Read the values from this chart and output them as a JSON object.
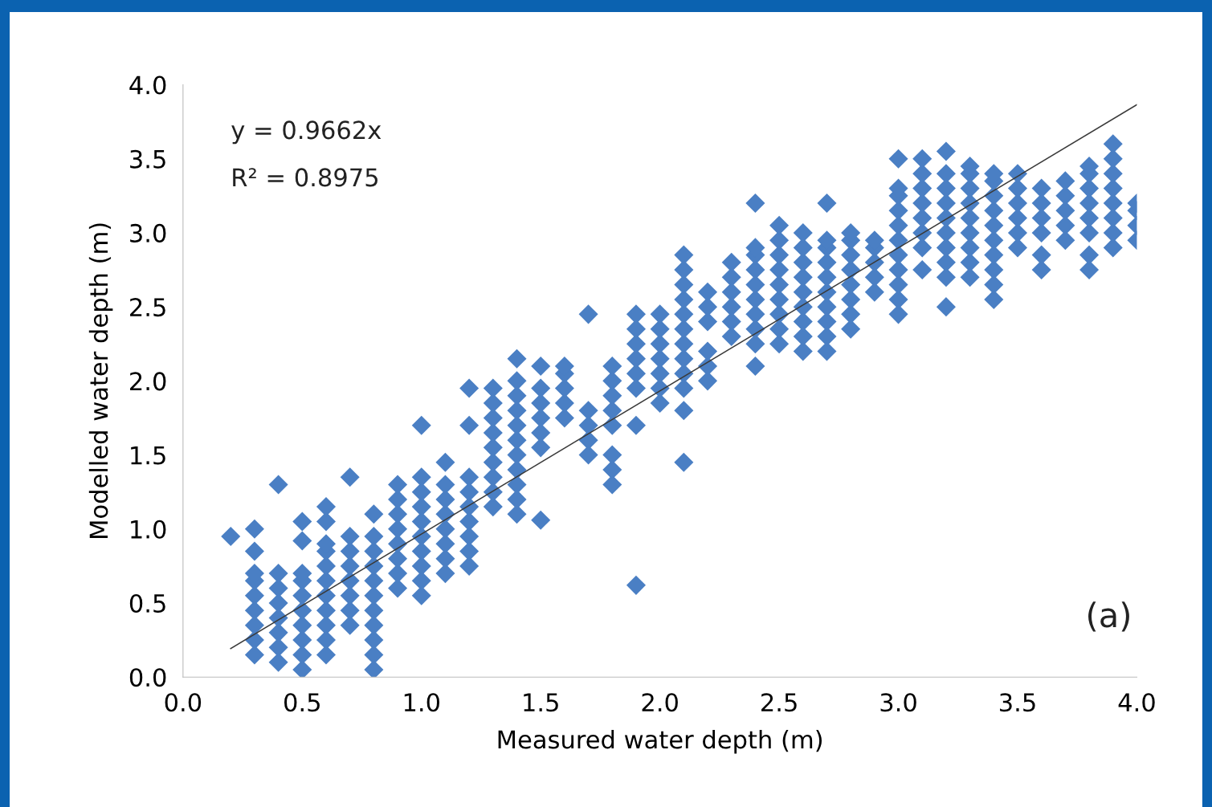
{
  "chart_data": {
    "type": "scatter",
    "xlabel": "Measured water depth (m)",
    "ylabel": "Modelled water depth (m)",
    "xlim": [
      0.0,
      4.0
    ],
    "ylim": [
      0.0,
      4.0
    ],
    "xticks": [
      {
        "value": 0,
        "label": "0.0"
      },
      {
        "value": 0.5,
        "label": "0.5"
      },
      {
        "value": 1,
        "label": "1.0"
      },
      {
        "value": 1.5,
        "label": "1.5"
      },
      {
        "value": 2,
        "label": "2.0"
      },
      {
        "value": 2.5,
        "label": "2.5"
      },
      {
        "value": 3,
        "label": "3.0"
      },
      {
        "value": 3.5,
        "label": "3.5"
      },
      {
        "value": 4,
        "label": "4.0"
      }
    ],
    "yticks": [
      {
        "value": 0,
        "label": "0.0"
      },
      {
        "value": 0.5,
        "label": "0.5"
      },
      {
        "value": 1,
        "label": "1.0"
      },
      {
        "value": 1.5,
        "label": "1.5"
      },
      {
        "value": 2,
        "label": "2.0"
      },
      {
        "value": 2.5,
        "label": "2.5"
      },
      {
        "value": 3,
        "label": "3.0"
      },
      {
        "value": 3.5,
        "label": "3.5"
      },
      {
        "value": 4,
        "label": "4.0"
      }
    ],
    "grid": false,
    "legend": false,
    "marker": "diamond",
    "annotations": [
      "y = 0.9662x",
      "R² = 0.8975",
      "(a)"
    ],
    "series": [
      {
        "color": "#4a7fc4",
        "x": [
          0.2,
          0.3,
          0.3,
          0.3,
          0.3,
          0.3,
          0.3,
          0.3,
          0.3,
          0.3,
          0.4,
          0.4,
          0.4,
          0.4,
          0.4,
          0.4,
          0.4,
          0.4,
          0.5,
          0.5,
          0.5,
          0.5,
          0.5,
          0.5,
          0.5,
          0.5,
          0.5,
          0.5,
          0.6,
          0.6,
          0.6,
          0.6,
          0.6,
          0.6,
          0.6,
          0.6,
          0.6,
          0.6,
          0.6,
          0.7,
          0.7,
          0.7,
          0.7,
          0.7,
          0.7,
          0.7,
          0.7,
          0.8,
          0.8,
          0.8,
          0.8,
          0.8,
          0.8,
          0.8,
          0.8,
          0.8,
          0.8,
          0.8,
          0.9,
          0.9,
          0.9,
          0.9,
          0.9,
          0.9,
          0.9,
          0.9,
          1.0,
          1.0,
          1.0,
          1.0,
          1.0,
          1.0,
          1.0,
          1.0,
          1.0,
          1.0,
          1.1,
          1.1,
          1.1,
          1.1,
          1.1,
          1.1,
          1.1,
          1.1,
          1.2,
          1.2,
          1.2,
          1.2,
          1.2,
          1.2,
          1.2,
          1.2,
          1.2,
          1.3,
          1.3,
          1.3,
          1.3,
          1.3,
          1.3,
          1.3,
          1.3,
          1.3,
          1.4,
          1.4,
          1.4,
          1.4,
          1.4,
          1.4,
          1.4,
          1.4,
          1.4,
          1.4,
          1.4,
          1.5,
          1.5,
          1.5,
          1.5,
          1.5,
          1.5,
          1.5,
          1.6,
          1.6,
          1.6,
          1.6,
          1.6,
          1.7,
          1.7,
          1.7,
          1.7,
          1.7,
          1.8,
          1.8,
          1.8,
          1.8,
          1.8,
          1.8,
          1.8,
          1.8,
          1.9,
          1.9,
          1.9,
          1.9,
          1.9,
          1.9,
          1.9,
          1.9,
          2.0,
          2.0,
          2.0,
          2.0,
          2.0,
          2.0,
          2.0,
          2.1,
          2.1,
          2.1,
          2.1,
          2.1,
          2.1,
          2.1,
          2.1,
          2.1,
          2.1,
          2.1,
          2.1,
          2.2,
          2.2,
          2.2,
          2.2,
          2.2,
          2.2,
          2.3,
          2.3,
          2.3,
          2.3,
          2.3,
          2.3,
          2.4,
          2.4,
          2.4,
          2.4,
          2.4,
          2.4,
          2.4,
          2.4,
          2.4,
          2.4,
          2.5,
          2.5,
          2.5,
          2.5,
          2.5,
          2.5,
          2.5,
          2.5,
          2.5,
          2.6,
          2.6,
          2.6,
          2.6,
          2.6,
          2.6,
          2.6,
          2.6,
          2.6,
          2.7,
          2.7,
          2.7,
          2.7,
          2.7,
          2.7,
          2.7,
          2.7,
          2.7,
          2.7,
          2.8,
          2.8,
          2.8,
          2.8,
          2.8,
          2.8,
          2.8,
          2.8,
          2.9,
          2.9,
          2.9,
          2.9,
          2.9,
          3.0,
          3.0,
          3.0,
          3.0,
          3.0,
          3.0,
          3.0,
          3.0,
          3.0,
          3.0,
          3.0,
          3.1,
          3.1,
          3.1,
          3.1,
          3.1,
          3.1,
          3.1,
          3.1,
          3.2,
          3.2,
          3.2,
          3.2,
          3.2,
          3.2,
          3.2,
          3.2,
          3.2,
          3.2,
          3.3,
          3.3,
          3.3,
          3.3,
          3.3,
          3.3,
          3.3,
          3.3,
          3.3,
          3.4,
          3.4,
          3.4,
          3.4,
          3.4,
          3.4,
          3.4,
          3.4,
          3.4,
          3.4,
          3.5,
          3.5,
          3.5,
          3.5,
          3.5,
          3.5,
          3.6,
          3.6,
          3.6,
          3.6,
          3.6,
          3.6,
          3.7,
          3.7,
          3.7,
          3.7,
          3.7,
          3.8,
          3.8,
          3.8,
          3.8,
          3.8,
          3.8,
          3.8,
          3.8,
          3.9,
          3.9,
          3.9,
          3.9,
          3.9,
          3.9,
          3.9,
          3.9,
          4.0,
          4.0,
          4.0,
          4.0
        ],
        "values": [
          0.95,
          0.15,
          0.25,
          0.35,
          0.45,
          0.55,
          0.65,
          0.7,
          0.85,
          1.0,
          0.1,
          0.2,
          0.3,
          0.4,
          0.5,
          0.6,
          0.7,
          1.3,
          0.05,
          0.15,
          0.25,
          0.35,
          0.45,
          0.55,
          0.65,
          0.7,
          0.92,
          1.05,
          0.15,
          0.25,
          0.35,
          0.45,
          0.55,
          0.65,
          0.75,
          0.85,
          0.9,
          1.05,
          1.15,
          0.35,
          0.45,
          0.55,
          0.65,
          0.75,
          0.85,
          0.95,
          1.35,
          0.05,
          0.15,
          0.25,
          0.35,
          0.45,
          0.55,
          0.65,
          0.75,
          0.85,
          0.95,
          1.1,
          0.6,
          0.7,
          0.8,
          0.9,
          1.0,
          1.1,
          1.2,
          1.3,
          0.55,
          0.65,
          0.75,
          0.85,
          0.95,
          1.05,
          1.15,
          1.25,
          1.35,
          1.7,
          0.7,
          0.8,
          0.9,
          1.0,
          1.1,
          1.2,
          1.3,
          1.45,
          0.75,
          0.85,
          0.95,
          1.05,
          1.15,
          1.25,
          1.35,
          1.7,
          1.95,
          1.15,
          1.25,
          1.35,
          1.45,
          1.55,
          1.65,
          1.75,
          1.85,
          1.95,
          1.1,
          1.2,
          1.3,
          1.4,
          1.5,
          1.6,
          1.7,
          1.8,
          1.9,
          2.0,
          2.15,
          1.06,
          1.55,
          1.65,
          1.75,
          1.85,
          1.95,
          2.1,
          1.75,
          1.85,
          1.95,
          2.05,
          2.1,
          1.5,
          1.6,
          1.7,
          1.8,
          2.45,
          1.3,
          1.4,
          1.5,
          1.7,
          1.8,
          1.9,
          2.0,
          2.1,
          0.62,
          1.7,
          1.95,
          2.05,
          2.15,
          2.25,
          2.35,
          2.45,
          1.85,
          1.95,
          2.05,
          2.15,
          2.25,
          2.35,
          2.45,
          1.45,
          1.8,
          1.95,
          2.05,
          2.15,
          2.25,
          2.35,
          2.45,
          2.55,
          2.65,
          2.75,
          2.85,
          2.0,
          2.1,
          2.2,
          2.4,
          2.5,
          2.6,
          2.3,
          2.4,
          2.5,
          2.6,
          2.7,
          2.8,
          2.1,
          2.25,
          2.35,
          2.45,
          2.55,
          2.65,
          2.75,
          2.85,
          2.9,
          3.2,
          2.25,
          2.35,
          2.45,
          2.55,
          2.65,
          2.75,
          2.85,
          2.95,
          3.05,
          2.2,
          2.3,
          2.4,
          2.5,
          2.6,
          2.7,
          2.8,
          2.9,
          3.0,
          2.2,
          2.3,
          2.4,
          2.5,
          2.6,
          2.7,
          2.8,
          2.9,
          2.95,
          3.2,
          2.35,
          2.45,
          2.55,
          2.65,
          2.75,
          2.85,
          2.95,
          3.0,
          2.6,
          2.7,
          2.8,
          2.9,
          2.95,
          2.45,
          2.55,
          2.65,
          2.75,
          2.85,
          2.95,
          3.05,
          3.15,
          3.25,
          3.3,
          3.5,
          2.75,
          2.9,
          3.0,
          3.1,
          3.2,
          3.3,
          3.4,
          3.5,
          2.5,
          2.7,
          2.8,
          2.9,
          3.0,
          3.1,
          3.2,
          3.3,
          3.4,
          3.55,
          2.7,
          2.8,
          2.9,
          3.0,
          3.1,
          3.2,
          3.3,
          3.4,
          3.45,
          2.55,
          2.65,
          2.75,
          2.85,
          2.95,
          3.05,
          3.15,
          3.25,
          3.35,
          3.4,
          2.9,
          3.0,
          3.1,
          3.2,
          3.3,
          3.4,
          2.75,
          2.85,
          3.0,
          3.1,
          3.2,
          3.3,
          2.95,
          3.05,
          3.15,
          3.25,
          3.35,
          2.75,
          2.85,
          3.0,
          3.1,
          3.2,
          3.3,
          3.4,
          3.45,
          2.9,
          3.0,
          3.1,
          3.2,
          3.3,
          3.4,
          3.5,
          3.6,
          2.95,
          3.05,
          3.15,
          3.2
        ]
      },
      {
        "type": "line",
        "color": "#3a3a3a",
        "marker": "none",
        "line_style": "solid",
        "x": [
          0.2,
          4.0
        ],
        "values": [
          0.193,
          3.865
        ]
      }
    ]
  }
}
